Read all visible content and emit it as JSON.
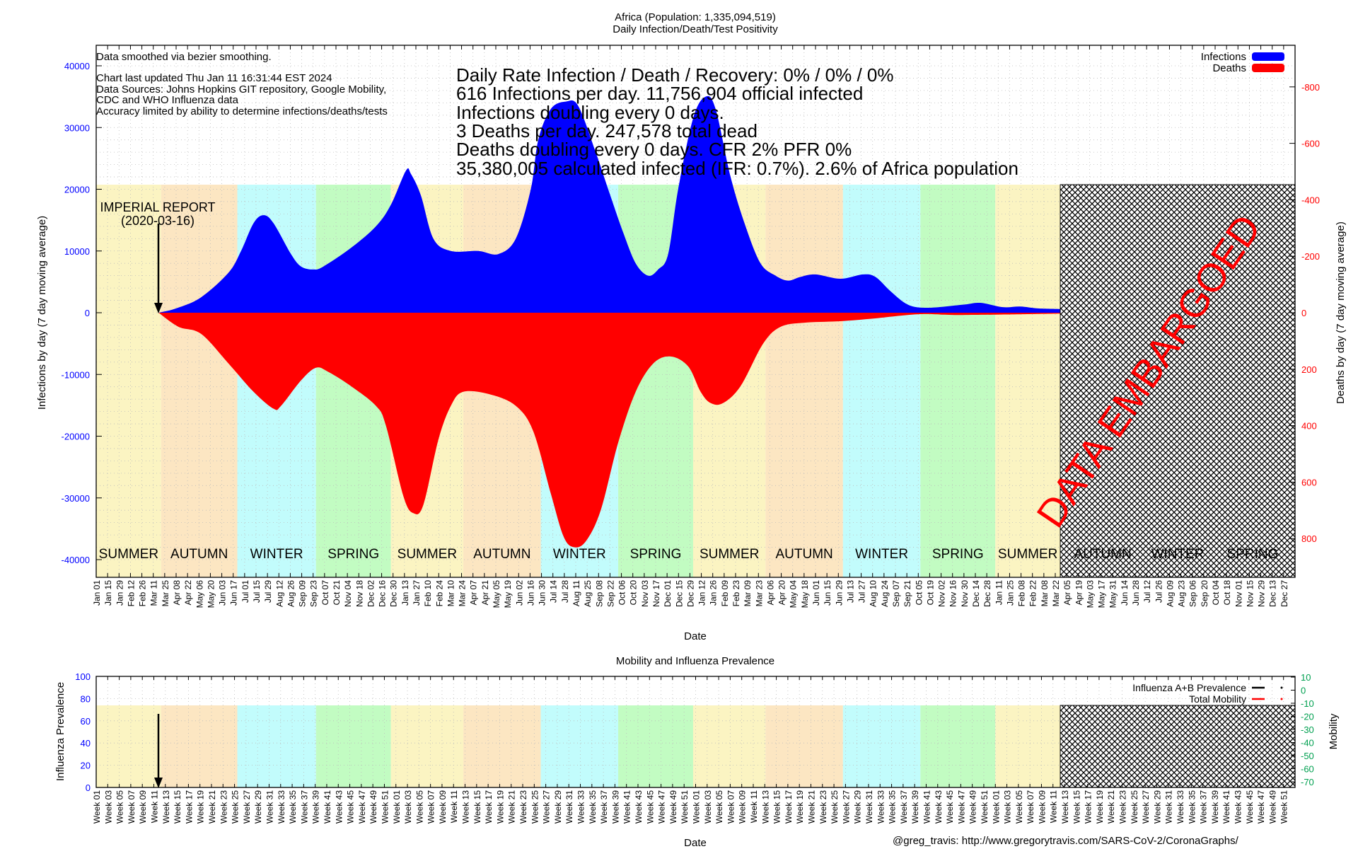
{
  "chart_data": [
    {
      "type": "area",
      "title": "Africa (Population: 1,335,094,519)",
      "subtitle": "Daily Infection/Death/Test Positivity",
      "xlabel": "Date",
      "ylabel": "Infections by day (7 day moving average)",
      "y2label": "Deaths by day (7 day moving average)",
      "ylim": [
        -43000,
        43000
      ],
      "y2lim": [
        950,
        -950
      ],
      "yticks": [
        "40000",
        "30000",
        "20000",
        "10000",
        "0",
        "-10000",
        "-20000",
        "-30000",
        "-40000"
      ],
      "y2ticks": [
        "-800",
        "-600",
        "-400",
        "-200",
        "0",
        "200",
        "400",
        "600",
        "800"
      ],
      "x_unit": "months since Jan 2020",
      "xticks": [
        "Jan 01",
        "Jan 15",
        "Jan 29",
        "Feb 12",
        "Feb 26",
        "Mar 11",
        "Mar 25",
        "Apr 08",
        "Apr 22",
        "May 06",
        "May 20",
        "Jun 03",
        "Jun 17",
        "Jul 01",
        "Jul 15",
        "Jul 29",
        "Aug 12",
        "Aug 26",
        "Sep 09",
        "Sep 23",
        "Oct 07",
        "Oct 21",
        "Nov 04",
        "Nov 18",
        "Dec 02",
        "Dec 16",
        "Dec 30",
        "Jan 13",
        "Jan 27",
        "Feb 10",
        "Feb 24",
        "Mar 10",
        "Mar 24",
        "Apr 07",
        "Apr 21",
        "May 05",
        "May 19",
        "Jun 02",
        "Jun 16",
        "Jun 30",
        "Jul 14",
        "Jul 28",
        "Aug 11",
        "Aug 25",
        "Sep 08",
        "Sep 22",
        "Oct 06",
        "Oct 20",
        "Nov 03",
        "Nov 17",
        "Dec 01",
        "Dec 15",
        "Dec 29",
        "Jan 12",
        "Jan 26",
        "Feb 09",
        "Feb 23",
        "Mar 09",
        "Mar 23",
        "Apr 06",
        "Apr 20",
        "May 04",
        "May 18",
        "Jun 01",
        "Jun 15",
        "Jun 29",
        "Jul 13",
        "Jul 27",
        "Aug 10",
        "Aug 24",
        "Sep 07",
        "Sep 21",
        "Oct 05",
        "Oct 19",
        "Nov 02",
        "Nov 16",
        "Nov 30",
        "Dec 14",
        "Dec 28",
        "Jan 11",
        "Jan 25",
        "Feb 08",
        "Feb 22",
        "Mar 08",
        "Mar 22",
        "Apr 05",
        "Apr 19",
        "May 03",
        "May 17",
        "May 31",
        "Jun 14",
        "Jun 28",
        "Jul 12",
        "Jul 26",
        "Aug 09",
        "Aug 23",
        "Sep 06",
        "Sep 20",
        "Oct 04",
        "Oct 18",
        "Nov 01",
        "Nov 15",
        "Nov 29",
        "Dec 13",
        "Dec 27"
      ],
      "legend": "top-right",
      "series": [
        {
          "name": "Infections",
          "color": "#0000ff",
          "x": [
            2.5,
            3.2,
            4.2,
            5.3,
            5.8,
            6.3,
            6.7,
            7.1,
            7.8,
            8.2,
            8.7,
            9.1,
            10.2,
            11.2,
            11.8,
            12.4,
            12.6,
            13.0,
            13.5,
            14.2,
            15.3,
            16.1,
            16.8,
            17.4,
            17.7,
            18.2,
            18.8,
            19.3,
            20.0,
            20.5,
            21.1,
            21.6,
            22.1,
            22.5,
            22.9,
            23.3,
            23.9,
            24.4,
            24.8,
            25.4,
            26.0,
            26.6,
            27.2,
            27.7,
            28.2,
            28.8,
            29.8,
            30.7,
            31.2,
            31.8,
            32.5,
            33.3,
            34.7,
            35.4,
            36.3,
            37.0,
            37.7,
            38.6
          ],
          "values": [
            0,
            700,
            2500,
            6500,
            10000,
            14500,
            15800,
            14500,
            9500,
            7500,
            7000,
            7500,
            10500,
            14000,
            17500,
            23000,
            22500,
            19000,
            12000,
            10000,
            10000,
            9500,
            12000,
            20000,
            28000,
            33000,
            34200,
            33500,
            26000,
            20000,
            13000,
            8000,
            6000,
            7000,
            9500,
            20000,
            31500,
            35000,
            33000,
            22000,
            14000,
            8000,
            6000,
            5200,
            5800,
            6200,
            5500,
            6200,
            5800,
            3500,
            1300,
            800,
            1300,
            1600,
            900,
            1000,
            700,
            600
          ]
        },
        {
          "name": "Deaths",
          "color": "#ff0000",
          "axis": "right",
          "plotted_downward": true,
          "x": [
            2.5,
            3.3,
            4.2,
            5.3,
            6.3,
            7.1,
            7.4,
            8.2,
            8.8,
            9.3,
            10.2,
            11.2,
            11.6,
            12.3,
            12.7,
            13.1,
            13.7,
            14.2,
            14.7,
            15.8,
            16.8,
            17.5,
            18.2,
            18.7,
            19.1,
            19.6,
            20.2,
            20.9,
            21.6,
            22.3,
            23.0,
            23.7,
            24.2,
            24.6,
            25.1,
            25.8,
            26.7,
            27.4,
            28.4,
            29.8,
            31.2,
            33.0,
            34.7,
            38.6
          ],
          "values": [
            0,
            50,
            75,
            180,
            280,
            340,
            330,
            240,
            195,
            210,
            260,
            330,
            400,
            650,
            710,
            680,
            450,
            330,
            280,
            290,
            330,
            420,
            640,
            790,
            830,
            810,
            700,
            460,
            280,
            180,
            155,
            190,
            280,
            320,
            320,
            260,
            110,
            50,
            35,
            30,
            20,
            5,
            8,
            3
          ]
        }
      ],
      "seasons": [
        {
          "label": "SUMMER",
          "kind": "summer",
          "start": 0,
          "end": 2.6
        },
        {
          "label": "AUTUMN",
          "kind": "autumn",
          "start": 2.6,
          "end": 5.65
        },
        {
          "label": "WINTER",
          "kind": "winter",
          "start": 5.65,
          "end": 8.8
        },
        {
          "label": "SPRING",
          "kind": "spring",
          "start": 8.8,
          "end": 11.8
        },
        {
          "label": "SUMMER",
          "kind": "summer",
          "start": 11.8,
          "end": 14.7
        },
        {
          "label": "AUTUMN",
          "kind": "autumn",
          "start": 14.7,
          "end": 17.8
        },
        {
          "label": "WINTER",
          "kind": "winter",
          "start": 17.8,
          "end": 20.9
        },
        {
          "label": "SPRING",
          "kind": "spring",
          "start": 20.9,
          "end": 23.9
        },
        {
          "label": "SUMMER",
          "kind": "summer",
          "start": 23.9,
          "end": 26.8
        },
        {
          "label": "AUTUMN",
          "kind": "autumn",
          "start": 26.8,
          "end": 29.9
        },
        {
          "label": "WINTER",
          "kind": "winter",
          "start": 29.9,
          "end": 33.0
        },
        {
          "label": "SPRING",
          "kind": "spring",
          "start": 33.0,
          "end": 36.0
        },
        {
          "label": "SUMMER",
          "kind": "summer",
          "start": 36.0,
          "end": 38.6
        }
      ],
      "embargo_seasons": [
        {
          "label": "AUTUMN",
          "at": 40.3
        },
        {
          "label": "WINTER",
          "at": 43.3
        },
        {
          "label": "SPRING",
          "at": 46.3
        }
      ],
      "embargo_start": 38.6,
      "embargo_label": "DATA EMBARGOED",
      "annotation": {
        "label": "IMPERIAL REPORT",
        "date": "(2020-03-16)",
        "at": 2.5
      },
      "notes": [
        "Data smoothed via bezier smoothing.",
        "Chart last updated Thu Jan 11 16:31:44 EST 2024",
        "Data Sources: Johns Hopkins GIT repository, Google Mobility,",
        "CDC and WHO Influenza data",
        "Accuracy limited by ability to determine infections/deaths/tests"
      ],
      "stats": [
        "Daily Rate Infection / Death / Recovery: 0% / 0% / 0%",
        "616 Infections per day.  11,756,904 official infected",
        "Infections doubling every 0 days.",
        "3 Deaths per day.  247,578 total dead",
        "Deaths doubling every 0 days.  CFR 2%  PFR 0%",
        "35,380,005 calculated infected (IFR: 0.7%).  2.6% of Africa population"
      ]
    },
    {
      "type": "line",
      "title": "Mobility and Influenza Prevalence",
      "xlabel": "Date",
      "ylabel": "Influenza Prevalence",
      "y2label": "Mobility",
      "ylim": [
        0,
        100
      ],
      "y2lim": [
        -75,
        12
      ],
      "yticks": [
        "100",
        "80",
        "60",
        "40",
        "20",
        "0"
      ],
      "y2ticks": [
        "10",
        "0",
        "-10",
        "-20",
        "-30",
        "-40",
        "-50",
        "-60",
        "-70"
      ],
      "xticks": [
        "Week 01",
        "Week 03",
        "Week 05",
        "Week 07",
        "Week 09",
        "Week 11",
        "Week 13",
        "Week 15",
        "Week 17",
        "Week 19",
        "Week 21",
        "Week 23",
        "Week 25",
        "Week 27",
        "Week 29",
        "Week 31",
        "Week 33",
        "Week 35",
        "Week 37",
        "Week 39",
        "Week 41",
        "Week 43",
        "Week 45",
        "Week 47",
        "Week 49",
        "Week 51",
        "Week 01",
        "Week 03",
        "Week 05",
        "Week 07",
        "Week 09",
        "Week 11",
        "Week 13",
        "Week 15",
        "Week 17",
        "Week 19",
        "Week 21",
        "Week 23",
        "Week 25",
        "Week 27",
        "Week 29",
        "Week 31",
        "Week 33",
        "Week 35",
        "Week 37",
        "Week 39",
        "Week 41",
        "Week 43",
        "Week 45",
        "Week 47",
        "Week 49",
        "Week 51",
        "Week 01",
        "Week 03",
        "Week 05",
        "Week 07",
        "Week 09",
        "Week 11",
        "Week 13",
        "Week 15",
        "Week 17",
        "Week 19",
        "Week 21",
        "Week 23",
        "Week 25",
        "Week 27",
        "Week 29",
        "Week 31",
        "Week 33",
        "Week 35",
        "Week 37",
        "Week 39",
        "Week 41",
        "Week 43",
        "Week 45",
        "Week 47",
        "Week 49",
        "Week 51",
        "Week 01",
        "Week 03",
        "Week 05",
        "Week 07",
        "Week 09",
        "Week 11",
        "Week 13",
        "Week 15",
        "Week 17",
        "Week 19",
        "Week 21",
        "Week 23",
        "Week 25",
        "Week 27",
        "Week 29",
        "Week 31",
        "Week 33",
        "Week 35",
        "Week 37",
        "Week 39",
        "Week 41",
        "Week 43",
        "Week 45",
        "Week 47",
        "Week 49",
        "Week 51"
      ],
      "legend": "top-right",
      "series": [
        {
          "name": "Influenza A+B Prevalence",
          "color": "#000000",
          "values": []
        },
        {
          "name": "Total Mobility",
          "color": "#ff0000",
          "values": []
        }
      ]
    }
  ],
  "credit": "@greg_travis: http://www.gregorytravis.com/SARS-CoV-2/CoronaGraphs/",
  "colors": {
    "summer": "#fbf4c2",
    "autumn": "#fce6c2",
    "winter": "#c2fcfc",
    "spring": "#c2fcc2",
    "infections": "#0000ff",
    "deaths": "#ff0000",
    "mobility_axis": "#00a050"
  }
}
